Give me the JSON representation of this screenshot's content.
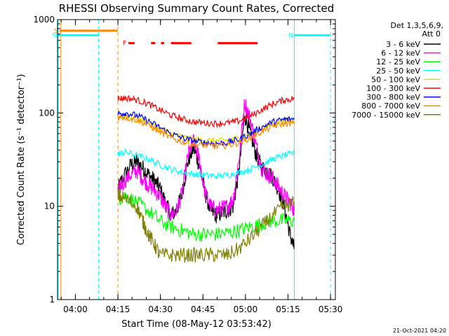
{
  "chart_data": {
    "type": "line",
    "title": "RHESSI Observing Summary Count Rates, Corrected",
    "xlabel": "Start Time (08-May-12 03:53:42)",
    "ylabel": "Corrected Count Rate (s⁻¹ detector⁻¹)",
    "x_tick_labels": [
      "04:00",
      "04:15",
      "04:30",
      "04:45",
      "05:00",
      "05:15",
      "05:30"
    ],
    "x_tick_minutes": [
      6.3,
      21.3,
      36.3,
      51.3,
      66.3,
      81.3,
      96.3
    ],
    "xlim_minutes": [
      0,
      98
    ],
    "y_scale": "log",
    "ylim": [
      1,
      1000
    ],
    "y_tick_labels": [
      "1",
      "10",
      "100",
      "1000"
    ],
    "y_tick_values": [
      1,
      10,
      100,
      1000
    ],
    "legend": {
      "placement": "right",
      "header1": "Det 1,3,5,6,9,",
      "header2": "Att 0"
    },
    "series": [
      {
        "name": "3 - 6 keV",
        "color": "#000000",
        "x": [
          21.3,
          23,
          26,
          28,
          30,
          32,
          34,
          36,
          38,
          40,
          42,
          44,
          46,
          48,
          50,
          52,
          54,
          56,
          58,
          60,
          62,
          64,
          66,
          68,
          70,
          72,
          74,
          76,
          78,
          80,
          82,
          83.5
        ],
        "y": [
          15,
          20,
          28,
          30,
          26,
          22,
          19,
          16,
          11,
          8,
          9,
          14,
          30,
          42,
          28,
          14,
          9,
          8,
          8.5,
          9,
          10,
          24,
          95,
          60,
          36,
          26,
          24,
          20,
          15,
          10,
          5,
          3.5
        ]
      },
      {
        "name": "6 - 12 keV",
        "color": "#ff00ff",
        "x": [
          21.3,
          23,
          26,
          28,
          30,
          32,
          34,
          36,
          38,
          40,
          42,
          44,
          46,
          48,
          50,
          52,
          54,
          56,
          58,
          60,
          62,
          64,
          66,
          68,
          70,
          72,
          74,
          76,
          78,
          80,
          82,
          83.5
        ],
        "y": [
          14,
          18,
          22,
          24,
          20,
          17,
          15,
          13,
          10,
          8,
          9,
          14,
          35,
          50,
          32,
          14,
          10,
          9,
          9.5,
          10,
          12,
          32,
          130,
          85,
          45,
          26,
          22,
          20,
          16,
          13,
          11,
          9
        ]
      },
      {
        "name": "12 - 25 keV",
        "color": "#00ff00",
        "x": [
          21.3,
          24,
          28,
          32,
          36,
          40,
          44,
          48,
          52,
          56,
          60,
          64,
          68,
          72,
          76,
          80,
          83.5
        ],
        "y": [
          12,
          13,
          11,
          9,
          7,
          6,
          5.5,
          5,
          5,
          5,
          5.2,
          5.5,
          6,
          6.5,
          7,
          7,
          7
        ]
      },
      {
        "name": "25 - 50 keV",
        "color": "#00ffff",
        "x": [
          21.3,
          24,
          28,
          32,
          36,
          40,
          44,
          48,
          52,
          56,
          60,
          64,
          68,
          72,
          76,
          80,
          83.5
        ],
        "y": [
          36,
          38,
          35,
          32,
          28,
          25,
          23,
          22,
          21.5,
          21,
          21.5,
          23,
          25,
          28,
          32,
          35,
          37
        ]
      },
      {
        "name": "50 - 100 keV",
        "color": "#dddd00",
        "x": [
          21.3,
          24,
          28,
          32,
          36,
          40,
          44,
          48,
          52,
          56,
          60,
          64,
          68,
          72,
          76,
          80,
          83.5
        ],
        "y": [
          92,
          94,
          88,
          78,
          68,
          60,
          55,
          52,
          51,
          50,
          51,
          54,
          60,
          68,
          78,
          82,
          84
        ]
      },
      {
        "name": "100 - 300 keV",
        "color": "#ff0000",
        "x": [
          21.3,
          24,
          28,
          32,
          36,
          40,
          44,
          48,
          52,
          56,
          60,
          64,
          68,
          72,
          76,
          80,
          83.5
        ],
        "y": [
          142,
          145,
          138,
          125,
          108,
          95,
          86,
          80,
          78,
          77,
          78,
          82,
          92,
          108,
          125,
          138,
          142
        ]
      },
      {
        "name": "300 - 800 keV",
        "color": "#0000ff",
        "x": [
          21.3,
          24,
          28,
          32,
          36,
          40,
          44,
          48,
          52,
          56,
          60,
          64,
          68,
          72,
          76,
          80,
          83.5
        ],
        "y": [
          98,
          100,
          94,
          82,
          70,
          60,
          54,
          50,
          48,
          47,
          48,
          52,
          60,
          70,
          80,
          85,
          86
        ]
      },
      {
        "name": "800 - 7000 keV",
        "color": "#ff8800",
        "x": [
          21.3,
          24,
          28,
          32,
          36,
          40,
          44,
          48,
          52,
          56,
          60,
          64,
          68,
          72,
          76,
          80,
          83.5
        ],
        "y": [
          90,
          90,
          84,
          74,
          63,
          54,
          49,
          46,
          45,
          44,
          45,
          48,
          54,
          63,
          72,
          77,
          78
        ]
      },
      {
        "name": "7000 - 15000 keV",
        "color": "#808000",
        "x": [
          21.3,
          24,
          28,
          30,
          32,
          34,
          36,
          40,
          44,
          48,
          52,
          56,
          60,
          64,
          68,
          72,
          76,
          80,
          83.5
        ],
        "y": [
          13,
          12,
          10,
          7,
          5,
          4,
          3,
          3,
          3,
          3,
          3,
          3,
          3,
          3.5,
          4.5,
          6,
          8,
          10,
          11
        ]
      }
    ],
    "flags": [
      {
        "label": "S",
        "color": "#ff8800",
        "x_start": 0.7,
        "x_end": 21.3,
        "y": 760
      },
      {
        "label": "N",
        "color": "#00ffff",
        "x_start": 0.2,
        "x_end": 14.5,
        "y": 680
      },
      {
        "label": "N",
        "color": "#00ffff",
        "x_start": 83.5,
        "x_end": 96.3,
        "y": 680
      },
      {
        "label": "F",
        "color": "#ff0000",
        "segments": [
          [
            25.0,
            27.2
          ],
          [
            33.0,
            34.5
          ],
          [
            36.5,
            37.6
          ],
          [
            40.0,
            47.2
          ],
          [
            56.5,
            70.5
          ]
        ],
        "y": 560
      }
    ],
    "vlines": [
      {
        "x": 0.2,
        "color": "#00ffff",
        "style": "solid"
      },
      {
        "x": 1.2,
        "color": "#ff8800",
        "style": "solid"
      },
      {
        "x": 14.5,
        "color": "#00ffff",
        "style": "dashed"
      },
      {
        "x": 21.3,
        "color": "#ff8800",
        "style": "dashed"
      },
      {
        "x": 83.5,
        "color": "#00ffff",
        "style": "solid"
      },
      {
        "x": 96.3,
        "color": "#00ffff",
        "style": "dashed"
      }
    ],
    "timestamp": "21-Oct-2021 04:20"
  }
}
